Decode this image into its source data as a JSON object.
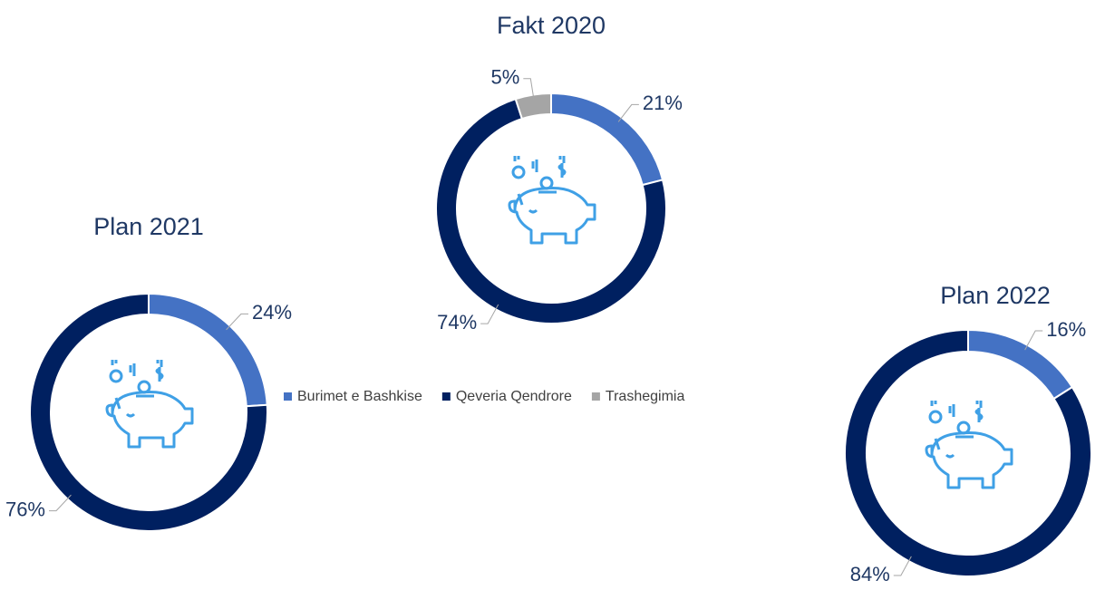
{
  "chart_data": [
    {
      "type": "donut",
      "title": "Fakt 2020",
      "categories": [
        "Burimet e Bashkise",
        "Qeveria Qendrore",
        "Trashegimia"
      ],
      "values": [
        21,
        74,
        5
      ],
      "value_labels": [
        "21%",
        "74%",
        "5%"
      ],
      "colors": [
        "#4472c4",
        "#002060",
        "#a5a5a5"
      ]
    },
    {
      "type": "donut",
      "title": "Plan 2021",
      "categories": [
        "Burimet e Bashkise",
        "Qeveria Qendrore"
      ],
      "values": [
        24,
        76
      ],
      "value_labels": [
        "24%",
        "76%"
      ],
      "colors": [
        "#4472c4",
        "#002060"
      ]
    },
    {
      "type": "donut",
      "title": "Plan 2022",
      "categories": [
        "Burimet e Bashkise",
        "Qeveria Qendrore"
      ],
      "values": [
        16,
        84
      ],
      "value_labels": [
        "16%",
        "84%"
      ],
      "colors": [
        "#4472c4",
        "#002060"
      ]
    }
  ]
}
